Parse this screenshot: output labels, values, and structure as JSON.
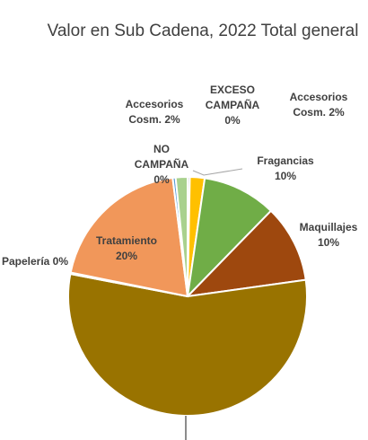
{
  "chart_data": {
    "type": "pie",
    "title": "Valor en Sub Cadena, 2022 Total general",
    "start": "12 o'clock, clockwise",
    "slices": [
      {
        "lines": [
          "EXCESO",
          "CAMPAÑA",
          "0%"
        ],
        "value": 0.3,
        "color": "#c0c0c0",
        "label_pos": "outside"
      },
      {
        "lines": [
          "Accesorios",
          "Cosm. 2%"
        ],
        "value": 2,
        "color": "#ffc000",
        "label_pos": "outside"
      },
      {
        "lines": [
          "Fragancias",
          "10%"
        ],
        "value": 10,
        "color": "#70ad47",
        "label_pos": "outside"
      },
      {
        "lines": [
          "Maquillajes",
          "10%"
        ],
        "value": 10.5,
        "color": "#9e480e",
        "label_pos": "outside"
      },
      {
        "lines": [],
        "value": 55.2,
        "color": "#997300",
        "label_pos": "none"
      },
      {
        "lines": [
          "Papelería 0%"
        ],
        "value": 0.2,
        "color": "#a5a5a5",
        "label_pos": "outside"
      },
      {
        "lines": [
          "Tratamiento",
          "20%"
        ],
        "value": 19.8,
        "color": "#f1975a",
        "label_pos": "inside"
      },
      {
        "lines": [
          "NO",
          "CAMPAÑA",
          "0%"
        ],
        "value": 0.4,
        "color": "#5b9bd5",
        "label_pos": "outside"
      },
      {
        "lines": [
          "Accesorios",
          "Cosm. 2%"
        ],
        "value": 1.6,
        "color": "#a9d18e",
        "label_pos": "outside"
      }
    ]
  }
}
